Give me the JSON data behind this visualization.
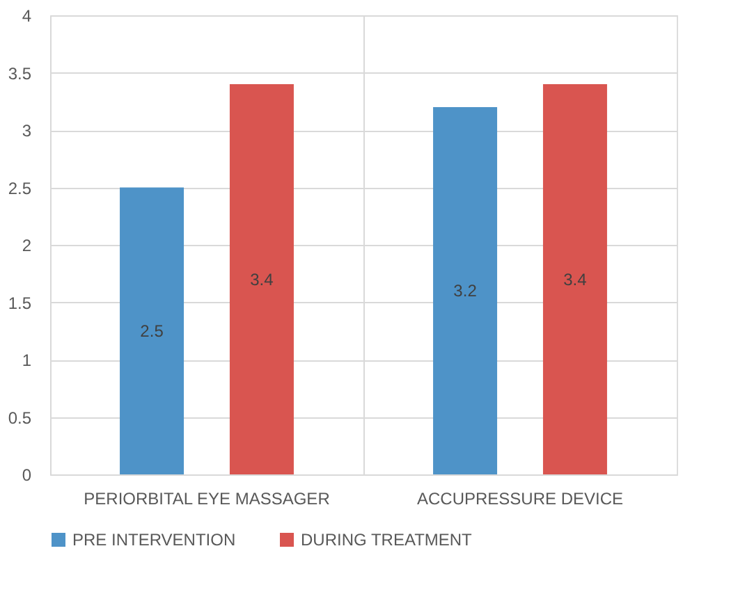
{
  "chart_data": {
    "type": "bar",
    "categories": [
      "PERIORBITAL EYE MASSAGER",
      "ACCUPRESSURE DEVICE"
    ],
    "series": [
      {
        "name": "PRE INTERVENTION",
        "color": "#4e93c8",
        "values": [
          2.5,
          3.2
        ]
      },
      {
        "name": "DURING TREATMENT",
        "color": "#d95550",
        "values": [
          3.4,
          3.4
        ]
      }
    ],
    "ylim": [
      0,
      4
    ],
    "yticks": [
      0,
      0.5,
      1,
      1.5,
      2,
      2.5,
      3,
      3.5,
      4
    ],
    "grid": true,
    "legend": "bottom",
    "data_labels": true
  }
}
